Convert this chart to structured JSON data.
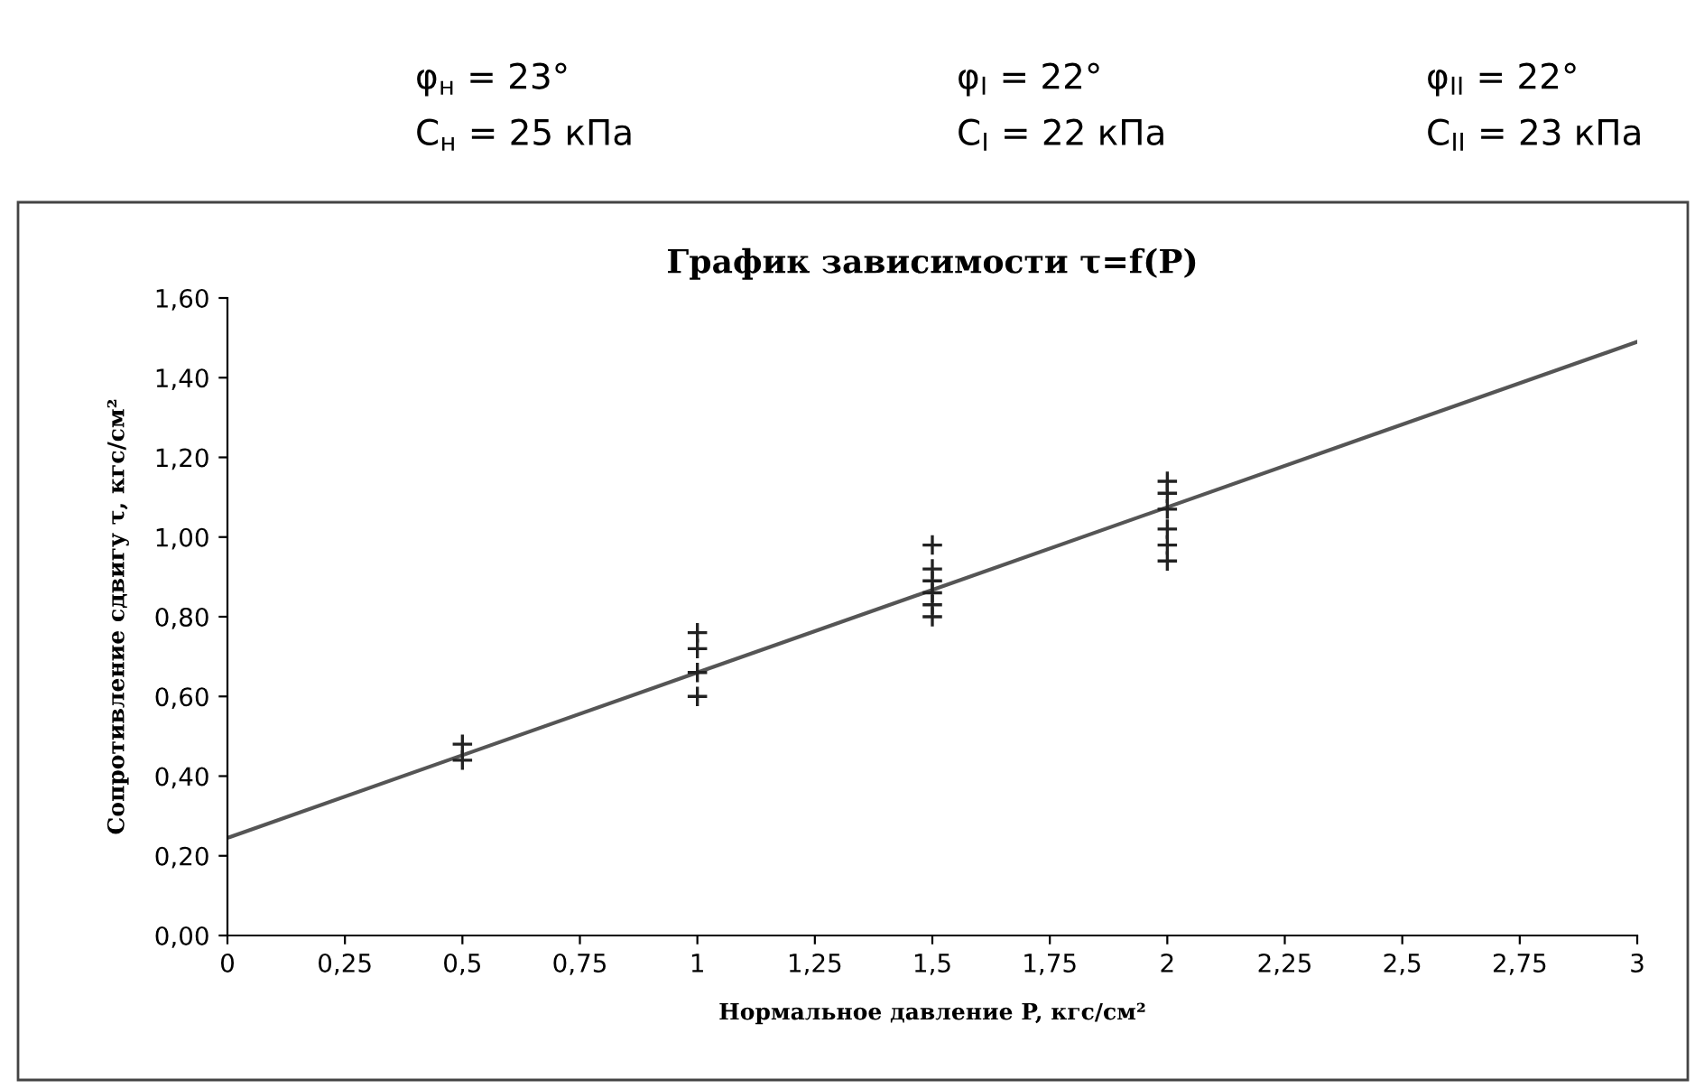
{
  "chart_data": {
    "type": "scatter",
    "title": "График зависимости τ=f(P)",
    "xlabel": "Нормальное давление P, кгс/см²",
    "ylabel": "Сопротивление сдвигу τ, кгс/см²",
    "annotations": [
      "φ$_{н}$ = 23°",
      "φ$_{I}$ = 22°",
      "φ$_{II}$ = 22°",
      "C$_{н}$ = 25 кПа",
      "C$_{I}$ = 22 кПа",
      "C$_{II}$ = 23 кПа"
    ],
    "series": [
      {
        "color": "#222222",
        "marker": "cross",
        "x": [
          0.5,
          0.5,
          1,
          1,
          1,
          1,
          1.5,
          1.5,
          1.5,
          1.5,
          1.5,
          1.5,
          2,
          2,
          2,
          2,
          2,
          2
        ],
        "values": [
          0.48,
          0.44,
          0.76,
          0.72,
          0.66,
          0.6,
          0.98,
          0.92,
          0.89,
          0.86,
          0.83,
          0.8,
          1.14,
          1.11,
          1.07,
          1.02,
          0.98,
          0.94
        ]
      },
      {
        "type": "line",
        "color": "#555555",
        "marker": "none",
        "line_style": "solid",
        "x": [
          0,
          3
        ],
        "values": [
          0.245,
          1.49
        ]
      }
    ],
    "xlim": [
      0,
      3
    ],
    "ylim": [
      0,
      1.6
    ],
    "xticks": [
      0,
      {
        "value": 0.25,
        "label": "0,25"
      },
      {
        "value": 0.5,
        "label": "0,5"
      },
      {
        "value": 0.75,
        "label": "0,75"
      },
      1,
      {
        "value": 1.25,
        "label": "1,25"
      },
      {
        "value": 1.5,
        "label": "1,5"
      },
      {
        "value": 1.75,
        "label": "1,75"
      },
      2,
      {
        "value": 2.25,
        "label": "2,25"
      },
      {
        "value": 2.5,
        "label": "2,5"
      },
      {
        "value": 2.75,
        "label": "2,75"
      },
      3
    ],
    "yticks": [
      {
        "value": 0,
        "label": "0,00"
      },
      {
        "value": 0.2,
        "label": "0,20"
      },
      {
        "value": 0.4,
        "label": "0,40"
      },
      {
        "value": 0.6,
        "label": "0,60"
      },
      {
        "value": 0.8,
        "label": "0,80"
      },
      {
        "value": 1.0,
        "label": "1,00"
      },
      {
        "value": 1.2,
        "label": "1,20"
      },
      {
        "value": 1.4,
        "label": "1,40"
      },
      {
        "value": 1.6,
        "label": "1,60"
      }
    ],
    "grid": false,
    "legend": false
  }
}
